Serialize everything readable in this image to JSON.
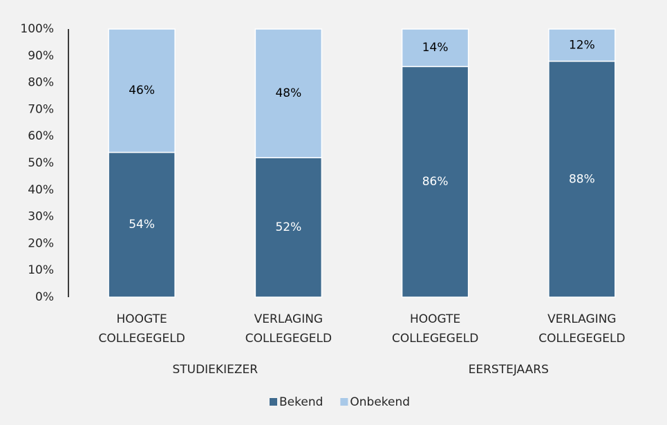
{
  "chart_data": {
    "type": "stacked_bar",
    "groups": [
      "STUDIEKIEZER",
      "EERSTEJAARS"
    ],
    "categories": [
      [
        "HOOGTE",
        "COLLEGEGELD"
      ],
      [
        "VERLAGING",
        "COLLEGEGELD"
      ],
      [
        "HOOGTE",
        "COLLEGEGELD"
      ],
      [
        "VERLAGING",
        "COLLEGEGELD"
      ]
    ],
    "series": [
      {
        "name": "Bekend",
        "color": "#3e6a8e",
        "label_color": "#ffffff",
        "values": [
          54,
          52,
          86,
          88
        ],
        "value_labels": [
          "54%",
          "52%",
          "86%",
          "88%"
        ]
      },
      {
        "name": "Onbekend",
        "color": "#a9c9e8",
        "label_color": "#000000",
        "values": [
          46,
          48,
          14,
          12
        ],
        "value_labels": [
          "46%",
          "48%",
          "14%",
          "12%"
        ]
      }
    ],
    "ylim": [
      0,
      100
    ],
    "yticks": [
      {
        "value": 0,
        "label": "0%"
      },
      {
        "value": 10,
        "label": "10%"
      },
      {
        "value": 20,
        "label": "20%"
      },
      {
        "value": 30,
        "label": "30%"
      },
      {
        "value": 40,
        "label": "40%"
      },
      {
        "value": 50,
        "label": "50%"
      },
      {
        "value": 60,
        "label": "60%"
      },
      {
        "value": 70,
        "label": "70%"
      },
      {
        "value": 80,
        "label": "80%"
      },
      {
        "value": 90,
        "label": "90%"
      },
      {
        "value": 100,
        "label": "100%"
      }
    ],
    "grid": false,
    "legend": "bottom"
  }
}
